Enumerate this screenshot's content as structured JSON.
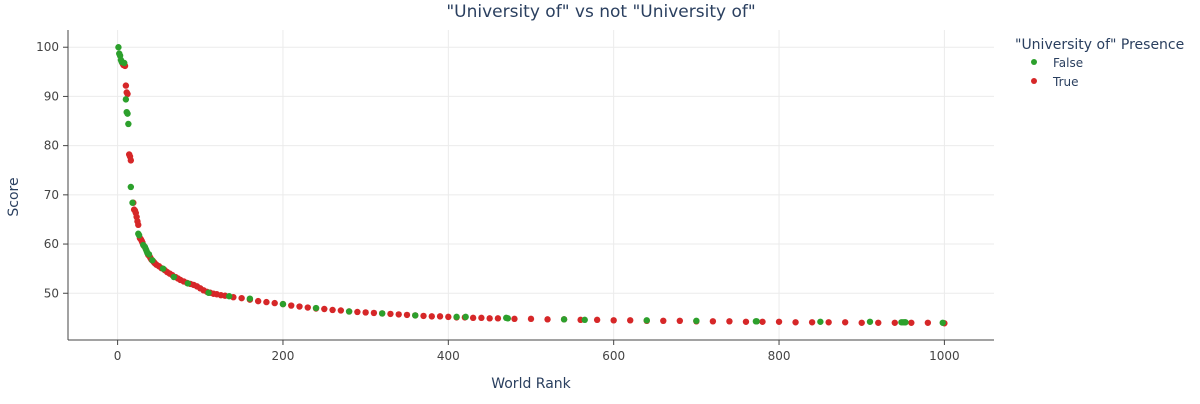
{
  "chart_data": {
    "type": "scatter",
    "title": "\"University of\" vs not \"University of\"",
    "xlabel": "World Rank",
    "ylabel": "Score",
    "xlim": [
      -60,
      1060
    ],
    "ylim": [
      40.5,
      103.5
    ],
    "xticks": [
      0,
      200,
      400,
      600,
      800,
      1000
    ],
    "yticks": [
      50,
      60,
      70,
      80,
      90,
      100
    ],
    "grid": true,
    "legend_position": "top-right",
    "legend_title": "\"University of\" Presence",
    "series": [
      {
        "name": "False",
        "color": "#2ca02c",
        "points": [
          [
            1,
            100.0
          ],
          [
            2,
            98.7
          ],
          [
            3,
            98.3
          ],
          [
            4,
            97.4
          ],
          [
            5,
            97.0
          ],
          [
            8,
            96.8
          ],
          [
            10,
            89.4
          ],
          [
            11,
            86.8
          ],
          [
            12,
            86.5
          ],
          [
            13,
            84.4
          ],
          [
            16,
            71.6
          ],
          [
            18,
            68.4
          ],
          [
            25,
            62.1
          ],
          [
            26,
            61.8
          ],
          [
            31,
            59.8
          ],
          [
            33,
            59.4
          ],
          [
            34,
            59.0
          ],
          [
            35,
            58.6
          ],
          [
            36,
            58.2
          ],
          [
            38,
            57.9
          ],
          [
            42,
            56.7
          ],
          [
            55,
            55.0
          ],
          [
            68,
            53.3
          ],
          [
            85,
            52.0
          ],
          [
            110,
            50.1
          ],
          [
            135,
            49.4
          ],
          [
            160,
            48.9
          ],
          [
            200,
            47.8
          ],
          [
            240,
            47.0
          ],
          [
            280,
            46.3
          ],
          [
            320,
            45.9
          ],
          [
            360,
            45.5
          ],
          [
            410,
            45.2
          ],
          [
            421,
            45.2
          ],
          [
            470,
            45.0
          ],
          [
            472,
            44.9
          ],
          [
            540,
            44.7
          ],
          [
            565,
            44.6
          ],
          [
            640,
            44.5
          ],
          [
            700,
            44.4
          ],
          [
            772,
            44.3
          ],
          [
            773,
            44.3
          ],
          [
            850,
            44.2
          ],
          [
            910,
            44.2
          ],
          [
            948,
            44.1
          ],
          [
            950,
            44.1
          ],
          [
            952,
            44.1
          ],
          [
            953,
            44.1
          ],
          [
            998,
            44.0
          ]
        ]
      },
      {
        "name": "True",
        "color": "#d62728",
        "points": [
          [
            6,
            96.7
          ],
          [
            7,
            96.4
          ],
          [
            9,
            96.2
          ],
          [
            10,
            92.2
          ],
          [
            11,
            90.8
          ],
          [
            12,
            90.5
          ],
          [
            14,
            78.2
          ],
          [
            15,
            77.8
          ],
          [
            16,
            77.0
          ],
          [
            19,
            68.4
          ],
          [
            20,
            67.0
          ],
          [
            21,
            66.8
          ],
          [
            22,
            66.3
          ],
          [
            23,
            65.5
          ],
          [
            24,
            64.6
          ],
          [
            25,
            63.9
          ],
          [
            27,
            61.2
          ],
          [
            28,
            61.0
          ],
          [
            29,
            60.7
          ],
          [
            30,
            60.3
          ],
          [
            32,
            59.6
          ],
          [
            37,
            57.8
          ],
          [
            39,
            57.4
          ],
          [
            40,
            57.1
          ],
          [
            41,
            56.8
          ],
          [
            43,
            56.5
          ],
          [
            44,
            56.3
          ],
          [
            45,
            56.1
          ],
          [
            47,
            55.8
          ],
          [
            50,
            55.5
          ],
          [
            53,
            55.1
          ],
          [
            57,
            54.7
          ],
          [
            60,
            54.3
          ],
          [
            63,
            54.0
          ],
          [
            66,
            53.7
          ],
          [
            70,
            53.3
          ],
          [
            73,
            53.0
          ],
          [
            76,
            52.7
          ],
          [
            80,
            52.4
          ],
          [
            84,
            52.1
          ],
          [
            88,
            51.9
          ],
          [
            92,
            51.7
          ],
          [
            96,
            51.4
          ],
          [
            100,
            51.0
          ],
          [
            104,
            50.6
          ],
          [
            108,
            50.3
          ],
          [
            112,
            50.1
          ],
          [
            116,
            49.9
          ],
          [
            120,
            49.8
          ],
          [
            125,
            49.6
          ],
          [
            130,
            49.5
          ],
          [
            140,
            49.2
          ],
          [
            150,
            49.0
          ],
          [
            160,
            48.7
          ],
          [
            170,
            48.4
          ],
          [
            180,
            48.2
          ],
          [
            190,
            48.0
          ],
          [
            200,
            47.8
          ],
          [
            210,
            47.5
          ],
          [
            220,
            47.3
          ],
          [
            230,
            47.1
          ],
          [
            240,
            46.9
          ],
          [
            250,
            46.8
          ],
          [
            260,
            46.6
          ],
          [
            270,
            46.5
          ],
          [
            280,
            46.3
          ],
          [
            290,
            46.2
          ],
          [
            300,
            46.1
          ],
          [
            310,
            46.0
          ],
          [
            320,
            45.9
          ],
          [
            330,
            45.8
          ],
          [
            340,
            45.7
          ],
          [
            350,
            45.6
          ],
          [
            360,
            45.5
          ],
          [
            370,
            45.4
          ],
          [
            380,
            45.3
          ],
          [
            390,
            45.3
          ],
          [
            400,
            45.2
          ],
          [
            410,
            45.1
          ],
          [
            420,
            45.1
          ],
          [
            430,
            45.0
          ],
          [
            440,
            45.0
          ],
          [
            450,
            44.9
          ],
          [
            460,
            44.9
          ],
          [
            480,
            44.8
          ],
          [
            500,
            44.8
          ],
          [
            520,
            44.7
          ],
          [
            540,
            44.7
          ],
          [
            560,
            44.6
          ],
          [
            580,
            44.6
          ],
          [
            600,
            44.5
          ],
          [
            620,
            44.5
          ],
          [
            640,
            44.4
          ],
          [
            660,
            44.4
          ],
          [
            680,
            44.4
          ],
          [
            700,
            44.3
          ],
          [
            720,
            44.3
          ],
          [
            740,
            44.3
          ],
          [
            760,
            44.2
          ],
          [
            780,
            44.2
          ],
          [
            800,
            44.2
          ],
          [
            820,
            44.1
          ],
          [
            840,
            44.1
          ],
          [
            860,
            44.1
          ],
          [
            880,
            44.1
          ],
          [
            900,
            44.0
          ],
          [
            920,
            44.0
          ],
          [
            940,
            44.0
          ],
          [
            960,
            44.0
          ],
          [
            980,
            44.0
          ],
          [
            1000,
            43.9
          ]
        ]
      }
    ]
  }
}
